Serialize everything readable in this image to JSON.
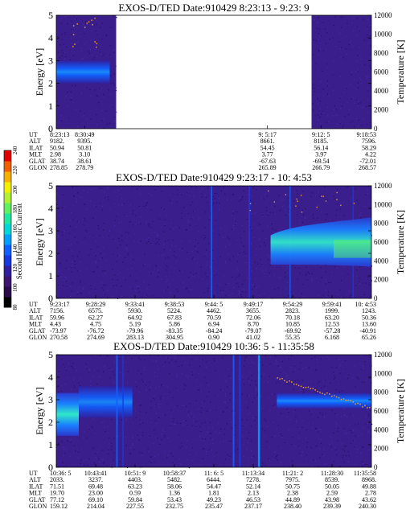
{
  "colorbar": {
    "ticks": [
      "240",
      "220",
      "200",
      "180",
      "160",
      "140",
      "120",
      "100",
      "80"
    ],
    "title": "Second Harmonic Current",
    "colors": [
      "#000000",
      "#2a0a4a",
      "#3d1470",
      "#3020a0",
      "#1838e0",
      "#1060ff",
      "#00a0ff",
      "#00d8d8",
      "#20e8a0",
      "#60f060",
      "#b0f030",
      "#f0f000",
      "#f8b000",
      "#f06000",
      "#e00000"
    ]
  },
  "labels": {
    "y_left": "Energy [eV]",
    "y_right": "Temperature [K]",
    "row_names": [
      "UT",
      "ALT",
      "ILAT",
      "MLT",
      "GLAT",
      "GLON"
    ]
  },
  "chart_data": [
    {
      "type": "heatmap",
      "title": "EXOS-D/TED   Date:910429   8:23:13 - 9:23: 9",
      "ylim": [
        0,
        5
      ],
      "y_ticks": [
        "0",
        "1",
        "2",
        "3",
        "4",
        "5"
      ],
      "y2lim": [
        0,
        12000
      ],
      "y2_ticks": [
        "0",
        "2000",
        "4000",
        "6000",
        "8000",
        "10000",
        "12000"
      ],
      "data_segments": [
        [
          0,
          0.19
        ],
        [
          0.81,
          1.0
        ]
      ],
      "band": {
        "center_eV": 2.5,
        "note": "bright band near 2.5 eV in first segment"
      },
      "annotation_rows": {
        "UT": [
          "8:23:13",
          "8:30:49",
          "9: 5:17",
          "9:12: 5",
          "9:18:53"
        ],
        "ALT": [
          "9182.",
          "9395.",
          "8661.",
          "8185.",
          "7596."
        ],
        "ILAT": [
          "50.94",
          "50.81",
          "54.45",
          "56.14",
          "58.29"
        ],
        "MLT": [
          "2.98",
          "3.10",
          "3.77",
          "3.97",
          "4.22"
        ],
        "GLAT": [
          "38.74",
          "38.61",
          "-67.63",
          "-69.54",
          "-72.01"
        ],
        "GLON": [
          "278.85",
          "278.79",
          "265.89",
          "266.79",
          "268.57"
        ]
      }
    },
    {
      "type": "heatmap",
      "title": "EXOS-D/TED   Date:910429   9:23:17 - 10: 4:53",
      "ylim": [
        0,
        5
      ],
      "y_ticks": [
        "0",
        "1",
        "2",
        "3",
        "4",
        "5"
      ],
      "y2lim": [
        0,
        12000
      ],
      "y2_ticks": [
        "0",
        "2000",
        "4000",
        "6000",
        "8000",
        "10000",
        "12000"
      ],
      "data_segments": [
        [
          0,
          1.0
        ]
      ],
      "annotation_rows": {
        "UT": [
          "9:23:17",
          "9:28:29",
          "9:33:41",
          "9:38:53",
          "9:44: 5",
          "9:49:17",
          "9:54:29",
          "9:59:41",
          "10: 4:53"
        ],
        "ALT": [
          "7156.",
          "6575.",
          "5930.",
          "5224.",
          "4462.",
          "3655.",
          "2823.",
          "1999.",
          "1243."
        ],
        "ILAT": [
          "59.96",
          "62.27",
          "64.92",
          "67.83",
          "70.59",
          "72.06",
          "70.18",
          "63.20",
          "50.36"
        ],
        "MLT": [
          "4.43",
          "4.75",
          "5.19",
          "5.86",
          "6.94",
          "8.70",
          "10.85",
          "12.53",
          "13.60"
        ],
        "GLAT": [
          "-73.97",
          "-76.72",
          "-79.96",
          "-83.35",
          "-84.24",
          "-79.07",
          "-69.92",
          "-57.28",
          "-40.91"
        ],
        "GLON": [
          "270.58",
          "274.69",
          "283.13",
          "304.95",
          "0.90",
          "41.02",
          "55.35",
          "6.168",
          "65.26"
        ]
      }
    },
    {
      "type": "heatmap",
      "title": "EXOS-D/TED   Date:910429   10:36: 5 - 11:35:58",
      "ylim": [
        0,
        5
      ],
      "y_ticks": [
        "0",
        "1",
        "2",
        "3",
        "4",
        "5"
      ],
      "y2lim": [
        0,
        12000
      ],
      "y2_ticks": [
        "0",
        "2000",
        "4000",
        "6000",
        "8000",
        "10000",
        "12000"
      ],
      "data_segments": [
        [
          0,
          1.0
        ]
      ],
      "annotation_rows": {
        "UT": [
          "10:36: 5",
          "10:43:41",
          "10:51: 9",
          "10:58:37",
          "11: 6: 5",
          "11:13:34",
          "11:21: 2",
          "11:28:30",
          "11:35:58"
        ],
        "ALT": [
          "2033.",
          "3237.",
          "4403.",
          "5482.",
          "6444.",
          "7278.",
          "7975.",
          "8539.",
          "8968."
        ],
        "ILAT": [
          "71.51",
          "69.48",
          "63.23",
          "58.06",
          "54.47",
          "52.14",
          "50.75",
          "50.05",
          "49.88"
        ],
        "MLT": [
          "19.70",
          "23.00",
          "0.59",
          "1.36",
          "1.81",
          "2.13",
          "2.38",
          "2.59",
          "2.78"
        ],
        "GLAT": [
          "77.12",
          "69.10",
          "59.84",
          "53.43",
          "49.23",
          "46.53",
          "44.89",
          "43.98",
          "43.62"
        ],
        "GLON": [
          "159.12",
          "214.04",
          "227.55",
          "232.75",
          "235.47",
          "237.17",
          "238.40",
          "239.39",
          "240.30"
        ]
      }
    }
  ]
}
